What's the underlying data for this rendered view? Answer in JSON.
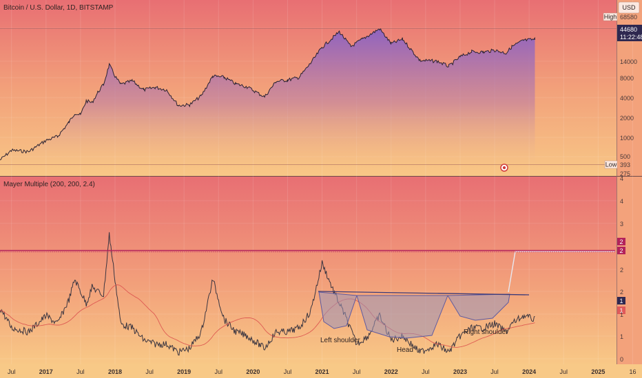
{
  "header": {
    "title": "Bitcoin / U.S. Dollar, 1D, BITSTAMP",
    "currency": "USD"
  },
  "top_pane": {
    "high_label": "High",
    "high_value": "68580",
    "price_value": "44680",
    "time_value": "11:22:48",
    "low_label": "Low",
    "low_value": "393",
    "y_ticks": [
      "14000",
      "8000",
      "4000",
      "2000",
      "1000",
      "500",
      "275"
    ]
  },
  "bottom_pane": {
    "indicator_title": "Mayer Multiple (200, 200, 2.4)",
    "y_ticks": [
      "4",
      "4",
      "3",
      "2",
      "2",
      "1",
      "1",
      "0"
    ],
    "badges": [
      "2",
      "2",
      "1",
      "1"
    ]
  },
  "annotations": {
    "left_shoulder": "Left shoulder",
    "head": "Head",
    "right_shoulder": "Right shoulder"
  },
  "x_axis": {
    "labels": [
      "Jul",
      "2017",
      "Jul",
      "2018",
      "Jul",
      "2019",
      "Jul",
      "2020",
      "Jul",
      "2021",
      "Jul",
      "2022",
      "Jul",
      "2023",
      "Jul",
      "2024",
      "Jul",
      "2025",
      "16"
    ]
  },
  "colors": {
    "price_line": "#2a2233",
    "area_fill": "#8e6ac0",
    "mayer_line": "#3a3540",
    "sma_line": "#d94a4a",
    "threshold_line": "#b3225a",
    "neckline": "#3a3a7a",
    "pattern_fill": "#9a94b8"
  },
  "chart_data": [
    {
      "type": "area",
      "title": "Bitcoin / U.S. Dollar, 1D, BITSTAMP",
      "scale": "log",
      "ylim": [
        275,
        68580
      ],
      "x": [
        "2016-05",
        "2016-07",
        "2016-10",
        "2017-01",
        "2017-03",
        "2017-05",
        "2017-06",
        "2017-07",
        "2017-08",
        "2017-09",
        "2017-10",
        "2017-11",
        "2017-12",
        "2018-01",
        "2018-02",
        "2018-04",
        "2018-06",
        "2018-08",
        "2018-10",
        "2018-12",
        "2019-02",
        "2019-04",
        "2019-06",
        "2019-08",
        "2019-10",
        "2019-12",
        "2020-03",
        "2020-05",
        "2020-07",
        "2020-09",
        "2020-11",
        "2021-01",
        "2021-04",
        "2021-06",
        "2021-08",
        "2021-11",
        "2022-01",
        "2022-03",
        "2022-06",
        "2022-09",
        "2022-11",
        "2023-01",
        "2023-03",
        "2023-05",
        "2023-07",
        "2023-09",
        "2023-10",
        "2023-12",
        "2024-02"
      ],
      "values": [
        450,
        650,
        620,
        950,
        1100,
        1900,
        2700,
        2500,
        4300,
        4000,
        5900,
        8000,
        17000,
        11000,
        8000,
        9200,
        6500,
        7200,
        6500,
        3600,
        3700,
        5200,
        11000,
        10500,
        8200,
        7300,
        5000,
        9000,
        9500,
        10500,
        18000,
        33000,
        60000,
        34000,
        45000,
        67000,
        38000,
        45000,
        20000,
        19500,
        16000,
        23000,
        28000,
        27500,
        29500,
        26500,
        34000,
        43000,
        44680
      ],
      "high": 68580,
      "low": 393,
      "last": 44680
    },
    {
      "type": "line",
      "title": "Mayer Multiple (200, 200, 2.4)",
      "ylim": [
        0,
        4.5
      ],
      "x": [
        "2016-05",
        "2016-07",
        "2016-10",
        "2017-01",
        "2017-03",
        "2017-05",
        "2017-06",
        "2017-08",
        "2017-09",
        "2017-11",
        "2017-12",
        "2018-02",
        "2018-04",
        "2018-06",
        "2018-08",
        "2018-10",
        "2018-12",
        "2019-02",
        "2019-04",
        "2019-06",
        "2019-08",
        "2019-10",
        "2019-12",
        "2020-03",
        "2020-05",
        "2020-07",
        "2020-09",
        "2020-11",
        "2021-01",
        "2021-03",
        "2021-05",
        "2021-07",
        "2021-09",
        "2021-11",
        "2022-01",
        "2022-03",
        "2022-06",
        "2022-09",
        "2022-11",
        "2023-01",
        "2023-03",
        "2023-05",
        "2023-07",
        "2023-09",
        "2023-10",
        "2023-12",
        "2024-02"
      ],
      "series": [
        {
          "values": [
            1.7,
            1.2,
            1.1,
            1.5,
            1.3,
            1.9,
            2.4,
            1.8,
            2.2,
            2.0,
            3.5,
            1.3,
            1.2,
            0.9,
            0.8,
            0.8,
            0.6,
            0.7,
            1.1,
            2.4,
            1.4,
            1.1,
            1.0,
            0.7,
            1.1,
            1.1,
            1.2,
            1.6,
            2.8,
            2.1,
            1.5,
            0.8,
            1.0,
            1.5,
            0.9,
            1.0,
            0.6,
            0.8,
            0.6,
            1.0,
            1.2,
            1.2,
            1.3,
            1.1,
            1.3,
            1.5,
            1.4
          ]
        }
      ],
      "threshold": 2.4
    }
  ]
}
